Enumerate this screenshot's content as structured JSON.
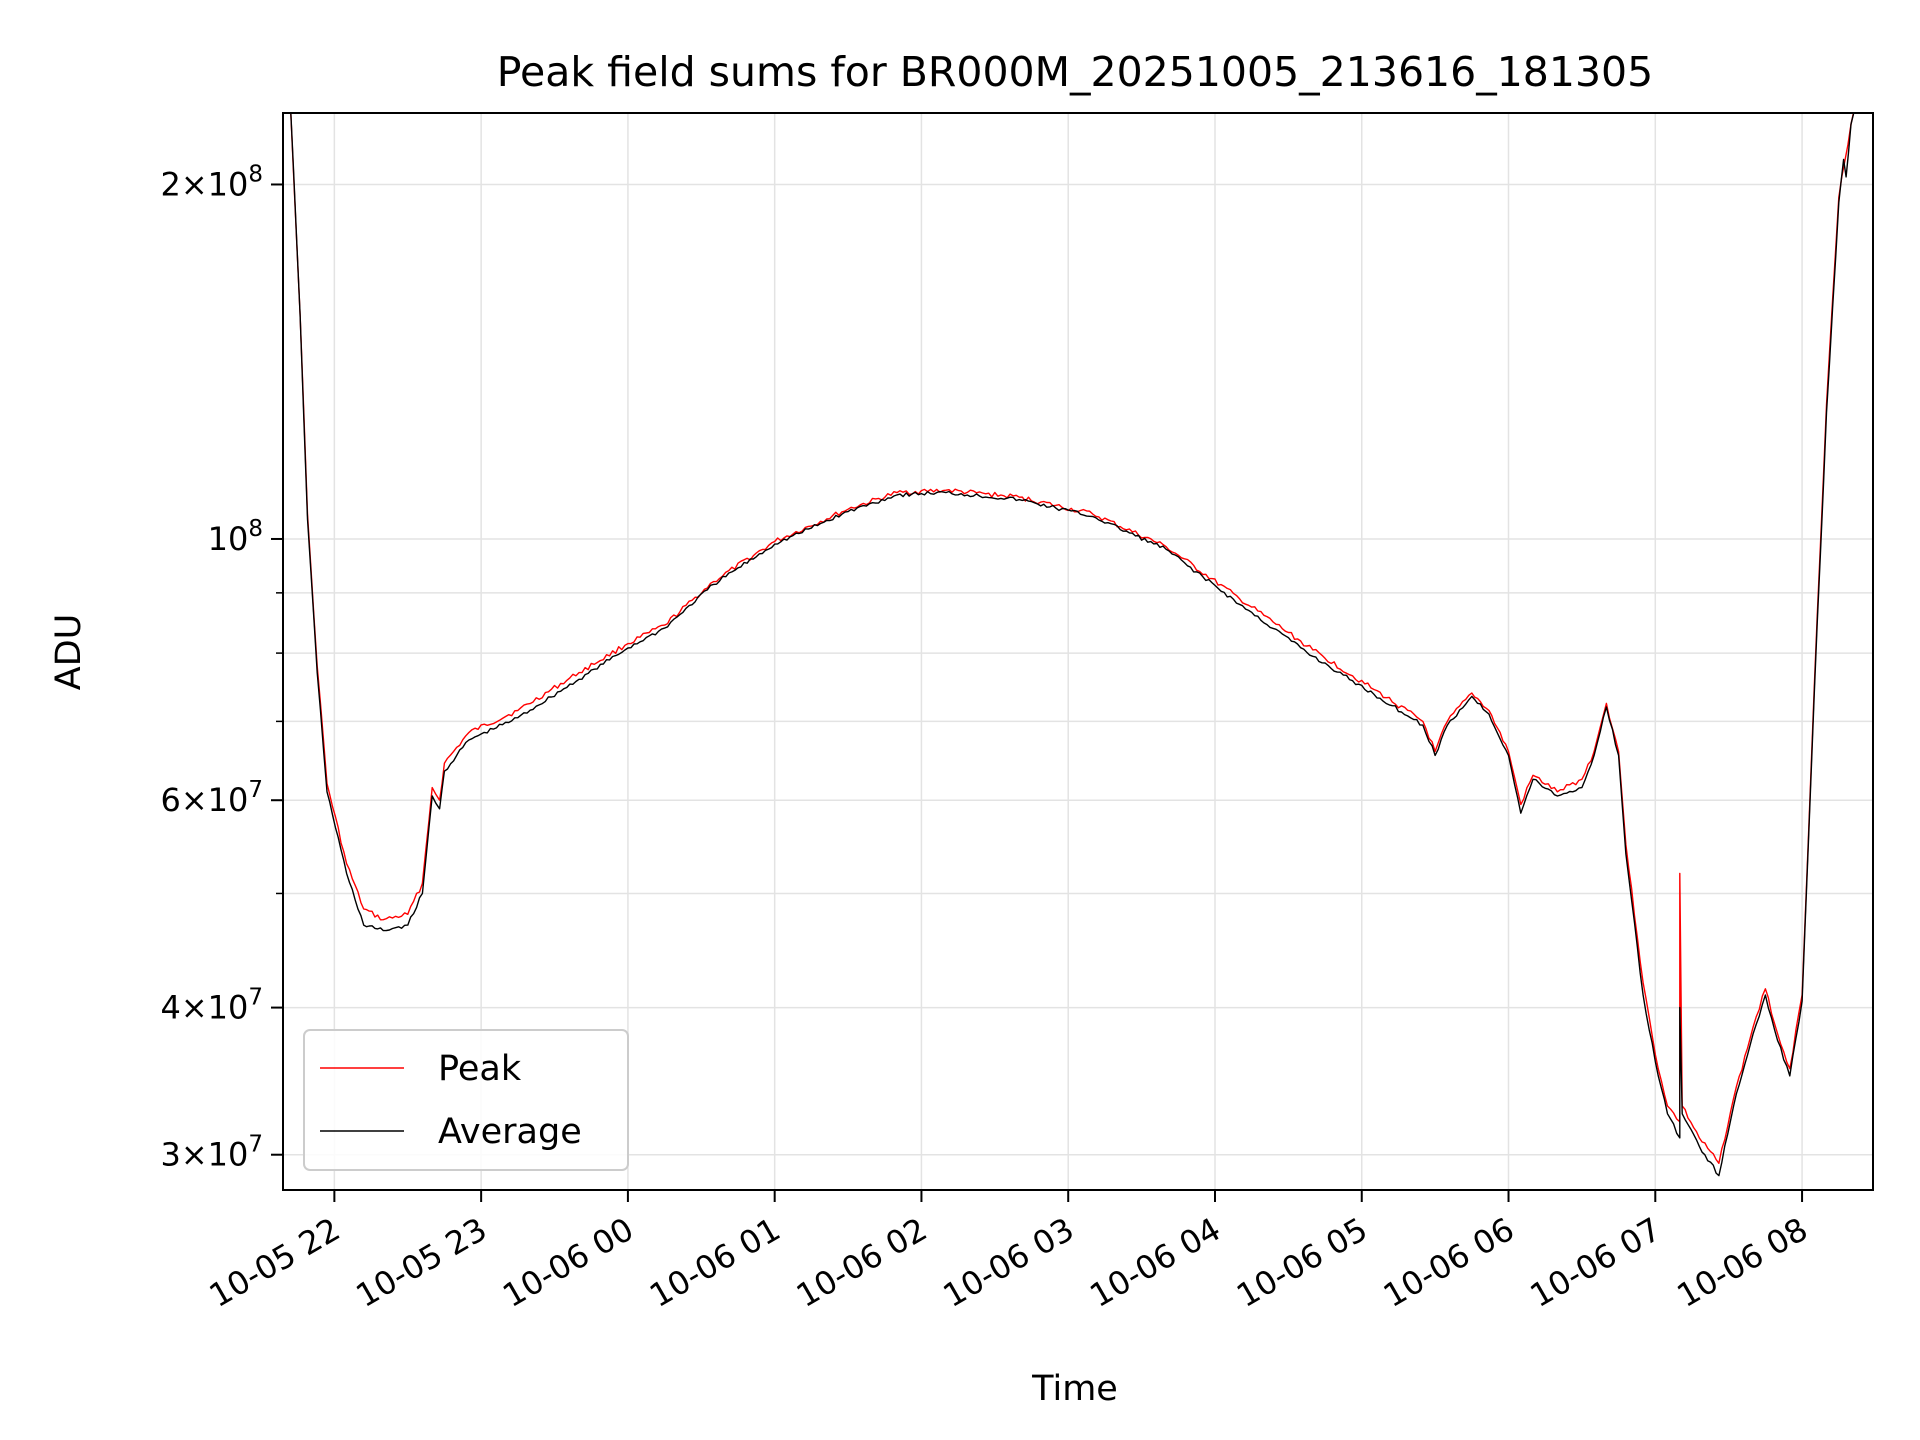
{
  "chart_data": {
    "type": "line",
    "title": "Peak field sums for BR000M_20251005_213616_181305",
    "xlabel": "Time",
    "ylabel": "ADU",
    "yscale": "log",
    "xlim": [
      "2025-10-05T21:39",
      "2025-10-06T08:29"
    ],
    "ylim": [
      28000000,
      230000000
    ],
    "grid": true,
    "legend_position": "lower-left",
    "x_ticks": [
      {
        "t": "2025-10-05T22:00",
        "label": "10-05 22"
      },
      {
        "t": "2025-10-05T23:00",
        "label": "10-05 23"
      },
      {
        "t": "2025-10-06T00:00",
        "label": "10-06 00"
      },
      {
        "t": "2025-10-06T01:00",
        "label": "10-06 01"
      },
      {
        "t": "2025-10-06T02:00",
        "label": "10-06 02"
      },
      {
        "t": "2025-10-06T03:00",
        "label": "10-06 03"
      },
      {
        "t": "2025-10-06T04:00",
        "label": "10-06 04"
      },
      {
        "t": "2025-10-06T05:00",
        "label": "10-06 05"
      },
      {
        "t": "2025-10-06T06:00",
        "label": "10-06 06"
      },
      {
        "t": "2025-10-06T07:00",
        "label": "10-06 07"
      },
      {
        "t": "2025-10-06T08:00",
        "label": "10-06 08"
      }
    ],
    "y_major_ticks": [
      {
        "v": 30000000,
        "mant": "3",
        "exp": "7"
      },
      {
        "v": 40000000,
        "mant": "4",
        "exp": "7"
      },
      {
        "v": 60000000,
        "mant": "6",
        "exp": "7"
      },
      {
        "v": 100000000,
        "mant": "",
        "exp": "8"
      },
      {
        "v": 200000000,
        "mant": "2",
        "exp": "8"
      }
    ],
    "y_minor_ticks": [
      50000000,
      70000000,
      80000000,
      90000000
    ],
    "series": [
      {
        "name": "Peak",
        "color": "#ff0000",
        "points": [
          [
            "2025-10-05T21:42",
            235000000
          ],
          [
            "2025-10-05T21:46",
            155000000
          ],
          [
            "2025-10-05T21:49",
            105000000
          ],
          [
            "2025-10-05T21:53",
            78000000
          ],
          [
            "2025-10-05T21:57",
            62000000
          ],
          [
            "2025-10-05T22:05",
            53000000
          ],
          [
            "2025-10-05T22:12",
            48500000
          ],
          [
            "2025-10-05T22:20",
            47500000
          ],
          [
            "2025-10-05T22:30",
            48000000
          ],
          [
            "2025-10-05T22:36",
            51000000
          ],
          [
            "2025-10-05T22:40",
            61500000
          ],
          [
            "2025-10-05T22:43",
            60000000
          ],
          [
            "2025-10-05T22:45",
            64500000
          ],
          [
            "2025-10-05T22:55",
            68500000
          ],
          [
            "2025-10-05T23:15",
            71500000
          ],
          [
            "2025-10-05T23:40",
            77000000
          ],
          [
            "2025-10-06T00:00",
            81500000
          ],
          [
            "2025-10-06T00:15",
            84500000
          ],
          [
            "2025-10-06T00:35",
            92000000
          ],
          [
            "2025-10-06T01:00",
            99500000
          ],
          [
            "2025-10-06T01:30",
            106000000
          ],
          [
            "2025-10-06T01:50",
            109500000
          ],
          [
            "2025-10-06T02:10",
            110000000
          ],
          [
            "2025-10-06T02:40",
            108500000
          ],
          [
            "2025-10-06T03:10",
            105000000
          ],
          [
            "2025-10-06T03:40",
            98500000
          ],
          [
            "2025-10-06T04:10",
            89000000
          ],
          [
            "2025-10-06T04:40",
            80500000
          ],
          [
            "2025-10-06T05:05",
            74500000
          ],
          [
            "2025-10-06T05:25",
            70000000
          ],
          [
            "2025-10-06T05:30",
            66000000
          ],
          [
            "2025-10-06T05:35",
            70000000
          ],
          [
            "2025-10-06T05:45",
            74000000
          ],
          [
            "2025-10-06T05:52",
            71500000
          ],
          [
            "2025-10-06T06:00",
            66000000
          ],
          [
            "2025-10-06T06:05",
            59500000
          ],
          [
            "2025-10-06T06:10",
            63000000
          ],
          [
            "2025-10-06T06:20",
            61000000
          ],
          [
            "2025-10-06T06:30",
            62500000
          ],
          [
            "2025-10-06T06:35",
            66000000
          ],
          [
            "2025-10-06T06:40",
            72500000
          ],
          [
            "2025-10-06T06:45",
            66000000
          ],
          [
            "2025-10-06T06:48",
            55000000
          ],
          [
            "2025-10-06T06:55",
            42000000
          ],
          [
            "2025-10-06T07:00",
            36500000
          ],
          [
            "2025-10-06T07:05",
            33000000
          ],
          [
            "2025-10-06T07:10",
            32000000
          ],
          [
            "2025-10-06T07:10",
            52000000
          ],
          [
            "2025-10-06T07:11",
            33000000
          ],
          [
            "2025-10-06T07:18",
            31000000
          ],
          [
            "2025-10-06T07:26",
            29500000
          ],
          [
            "2025-10-06T07:32",
            33500000
          ],
          [
            "2025-10-06T07:40",
            38500000
          ],
          [
            "2025-10-06T07:45",
            41500000
          ],
          [
            "2025-10-06T07:50",
            38000000
          ],
          [
            "2025-10-06T07:55",
            35500000
          ],
          [
            "2025-10-06T08:00",
            41000000
          ],
          [
            "2025-10-06T08:05",
            75000000
          ],
          [
            "2025-10-06T08:10",
            130000000
          ],
          [
            "2025-10-06T08:15",
            195000000
          ],
          [
            "2025-10-06T08:20",
            225000000
          ],
          [
            "2025-10-06T08:22",
            235000000
          ]
        ]
      },
      {
        "name": "Average",
        "color": "#000000",
        "points": [
          [
            "2025-10-05T21:42",
            235000000
          ],
          [
            "2025-10-05T21:46",
            155000000
          ],
          [
            "2025-10-05T21:49",
            104000000
          ],
          [
            "2025-10-05T21:53",
            77000000
          ],
          [
            "2025-10-05T21:57",
            61000000
          ],
          [
            "2025-10-05T22:05",
            52000000
          ],
          [
            "2025-10-05T22:12",
            47000000
          ],
          [
            "2025-10-05T22:20",
            46500000
          ],
          [
            "2025-10-05T22:30",
            47000000
          ],
          [
            "2025-10-05T22:36",
            50000000
          ],
          [
            "2025-10-05T22:40",
            60500000
          ],
          [
            "2025-10-05T22:43",
            59000000
          ],
          [
            "2025-10-05T22:45",
            63500000
          ],
          [
            "2025-10-05T22:55",
            67500000
          ],
          [
            "2025-10-05T23:15",
            70500000
          ],
          [
            "2025-10-05T23:40",
            76000000
          ],
          [
            "2025-10-06T00:00",
            80800000
          ],
          [
            "2025-10-06T00:15",
            84000000
          ],
          [
            "2025-10-06T00:35",
            91500000
          ],
          [
            "2025-10-06T01:00",
            99000000
          ],
          [
            "2025-10-06T01:30",
            105500000
          ],
          [
            "2025-10-06T01:50",
            109000000
          ],
          [
            "2025-10-06T02:10",
            109500000
          ],
          [
            "2025-10-06T02:40",
            108000000
          ],
          [
            "2025-10-06T03:10",
            104500000
          ],
          [
            "2025-10-06T03:40",
            98000000
          ],
          [
            "2025-10-06T04:10",
            88000000
          ],
          [
            "2025-10-06T04:40",
            79500000
          ],
          [
            "2025-10-06T05:05",
            73800000
          ],
          [
            "2025-10-06T05:25",
            69500000
          ],
          [
            "2025-10-06T05:30",
            65500000
          ],
          [
            "2025-10-06T05:35",
            69500000
          ],
          [
            "2025-10-06T05:45",
            73500000
          ],
          [
            "2025-10-06T05:52",
            71000000
          ],
          [
            "2025-10-06T06:00",
            65500000
          ],
          [
            "2025-10-06T06:05",
            58500000
          ],
          [
            "2025-10-06T06:10",
            62500000
          ],
          [
            "2025-10-06T06:20",
            60500000
          ],
          [
            "2025-10-06T06:30",
            61500000
          ],
          [
            "2025-10-06T06:35",
            65500000
          ],
          [
            "2025-10-06T06:40",
            72000000
          ],
          [
            "2025-10-06T06:45",
            65500000
          ],
          [
            "2025-10-06T06:48",
            54000000
          ],
          [
            "2025-10-06T06:55",
            41000000
          ],
          [
            "2025-10-06T07:00",
            36000000
          ],
          [
            "2025-10-06T07:05",
            32500000
          ],
          [
            "2025-10-06T07:10",
            31000000
          ],
          [
            "2025-10-06T07:10",
            40000000
          ],
          [
            "2025-10-06T07:11",
            32500000
          ],
          [
            "2025-10-06T07:18",
            30500000
          ],
          [
            "2025-10-06T07:26",
            28800000
          ],
          [
            "2025-10-06T07:32",
            33000000
          ],
          [
            "2025-10-06T07:40",
            38000000
          ],
          [
            "2025-10-06T07:45",
            41000000
          ],
          [
            "2025-10-06T07:50",
            37500000
          ],
          [
            "2025-10-06T07:55",
            35000000
          ],
          [
            "2025-10-06T08:00",
            40500000
          ],
          [
            "2025-10-06T08:05",
            74000000
          ],
          [
            "2025-10-06T08:10",
            128000000
          ],
          [
            "2025-10-06T08:15",
            193000000
          ],
          [
            "2025-10-06T08:17",
            210000000
          ],
          [
            "2025-10-06T08:18",
            203000000
          ],
          [
            "2025-10-06T08:20",
            225000000
          ],
          [
            "2025-10-06T08:22",
            235000000
          ]
        ]
      }
    ]
  }
}
